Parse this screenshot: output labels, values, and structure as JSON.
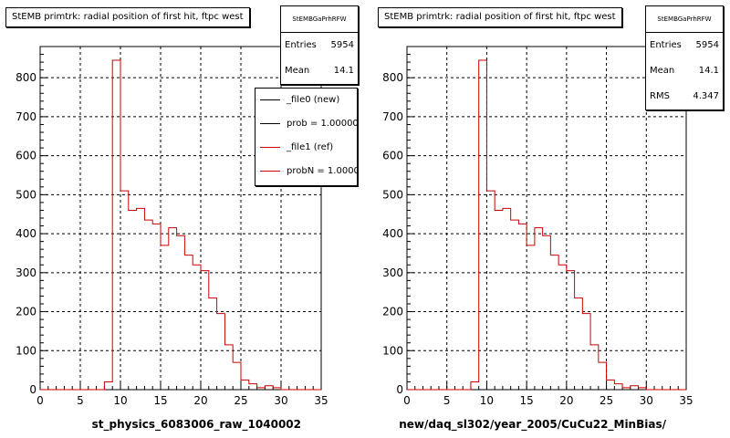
{
  "footer": "",
  "chart_data": [
    {
      "type": "histogram",
      "title": "StEMB primtrk: radial position of first hit, ftpc west",
      "xlabel": "st_physics_6083006_raw_1040002",
      "ylabel": "",
      "xlim": [
        0,
        35
      ],
      "ylim": [
        0,
        880
      ],
      "xticks": [
        0,
        5,
        10,
        15,
        20,
        25,
        30,
        35
      ],
      "yticks": [
        0,
        100,
        200,
        300,
        400,
        500,
        600,
        700,
        800
      ],
      "grid": true,
      "bin_edges": [
        0,
        1,
        2,
        3,
        4,
        5,
        6,
        7,
        8,
        9,
        10,
        11,
        12,
        13,
        14,
        15,
        16,
        17,
        18,
        19,
        20,
        21,
        22,
        23,
        24,
        25,
        26,
        27,
        28,
        29,
        30,
        31,
        32,
        33,
        34,
        35
      ],
      "series": [
        {
          "name": "_file1 (ref)",
          "color": "#cc0000",
          "values": [
            0,
            0,
            0,
            0,
            0,
            0,
            0,
            0,
            20,
            845,
            510,
            460,
            465,
            435,
            425,
            370,
            415,
            395,
            345,
            320,
            305,
            235,
            195,
            115,
            70,
            25,
            15,
            5,
            10,
            5,
            0,
            0,
            0,
            0,
            0
          ]
        }
      ],
      "stats": {
        "title": "StEMBGaPrhRFW",
        "rows": [
          {
            "label": "Entries",
            "value": "5954"
          },
          {
            "label": "Mean",
            "value": "14.1"
          }
        ]
      },
      "legend": {
        "placement": "top-right",
        "entries": [
          {
            "label": "_file0 (new)",
            "color": "#000000"
          },
          {
            "label": "prob = 1.000000",
            "color": "#000000"
          },
          {
            "label": "_file1 (ref)",
            "color": "#cc0000"
          },
          {
            "label": "probN = 1.000000",
            "color": "#cc0000"
          }
        ]
      }
    },
    {
      "type": "histogram",
      "title": "StEMB primtrk: radial position of first hit, ftpc west",
      "xlabel": "new/daq_sl302/year_2005/CuCu22_MinBias/",
      "ylabel": "",
      "xlim": [
        0,
        35
      ],
      "ylim": [
        0,
        880
      ],
      "xticks": [
        0,
        5,
        10,
        15,
        20,
        25,
        30,
        35
      ],
      "yticks": [
        0,
        100,
        200,
        300,
        400,
        500,
        600,
        700,
        800
      ],
      "grid": true,
      "bin_edges": [
        0,
        1,
        2,
        3,
        4,
        5,
        6,
        7,
        8,
        9,
        10,
        11,
        12,
        13,
        14,
        15,
        16,
        17,
        18,
        19,
        20,
        21,
        22,
        23,
        24,
        25,
        26,
        27,
        28,
        29,
        30,
        31,
        32,
        33,
        34,
        35
      ],
      "series": [
        {
          "name": "",
          "color": "#cc0000",
          "values": [
            0,
            0,
            0,
            0,
            0,
            0,
            0,
            0,
            20,
            845,
            510,
            460,
            465,
            435,
            425,
            370,
            415,
            395,
            345,
            320,
            305,
            235,
            195,
            115,
            70,
            25,
            15,
            5,
            10,
            5,
            0,
            0,
            0,
            0,
            0
          ]
        }
      ],
      "stats": {
        "title": "StEMBGaPrhRFW",
        "rows": [
          {
            "label": "Entries",
            "value": "5954"
          },
          {
            "label": "Mean",
            "value": "14.1"
          },
          {
            "label": "RMS",
            "value": "4.347"
          }
        ]
      }
    }
  ]
}
